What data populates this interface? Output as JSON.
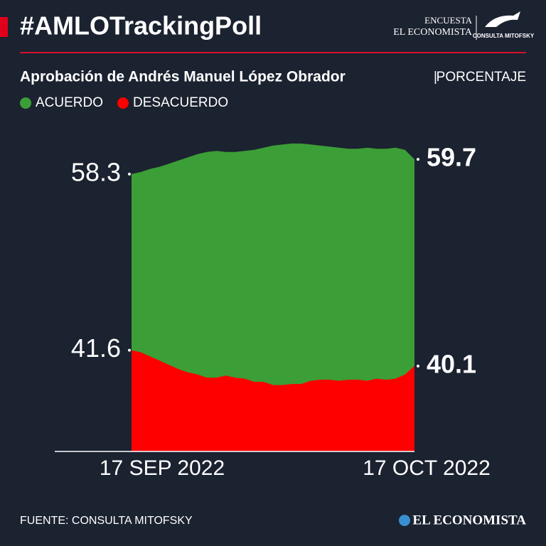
{
  "header": {
    "title": "#AMLOTrackingPoll",
    "brand_top": "ENCUESTA",
    "brand_name": "EL ECONOMISTA",
    "brand_logo": "CONSULTA MITOFSKY"
  },
  "chart_data": {
    "type": "area",
    "title": "Aprobación de Andrés Manuel López Obrador",
    "unit": "PORCENTAJE",
    "categories": [
      "17 SEP 2022",
      null,
      null,
      null,
      null,
      null,
      null,
      null,
      null,
      null,
      null,
      null,
      null,
      null,
      null,
      null,
      null,
      null,
      null,
      null,
      null,
      null,
      null,
      null,
      null,
      null,
      null,
      null,
      null,
      null,
      "17 OCT 2022"
    ],
    "series": [
      {
        "name": "ACUERDO",
        "color": "#3c9e37",
        "values": [
          58.3,
          58.5,
          58.8,
          59.0,
          59.3,
          59.6,
          59.9,
          60.2,
          60.4,
          60.5,
          60.4,
          60.4,
          60.5,
          60.6,
          60.8,
          61.0,
          61.1,
          61.2,
          61.2,
          61.1,
          61.0,
          60.9,
          60.8,
          60.7,
          60.7,
          60.8,
          60.7,
          60.7,
          60.8,
          60.6,
          59.7
        ]
      },
      {
        "name": "DESACUERDO",
        "color": "#fe0000",
        "values": [
          41.6,
          41.4,
          41.0,
          40.6,
          40.2,
          39.8,
          39.5,
          39.3,
          39.0,
          39.0,
          39.2,
          39.0,
          38.9,
          38.6,
          38.6,
          38.3,
          38.3,
          38.4,
          38.4,
          38.7,
          38.8,
          38.8,
          38.7,
          38.8,
          38.8,
          38.7,
          38.9,
          38.8,
          38.9,
          39.3,
          40.1
        ]
      }
    ],
    "ylim": [
      32,
      62
    ]
  },
  "footer": {
    "source": "FUENTE: CONSULTA MITOFSKY",
    "brand": "EL ECONOMISTA"
  }
}
